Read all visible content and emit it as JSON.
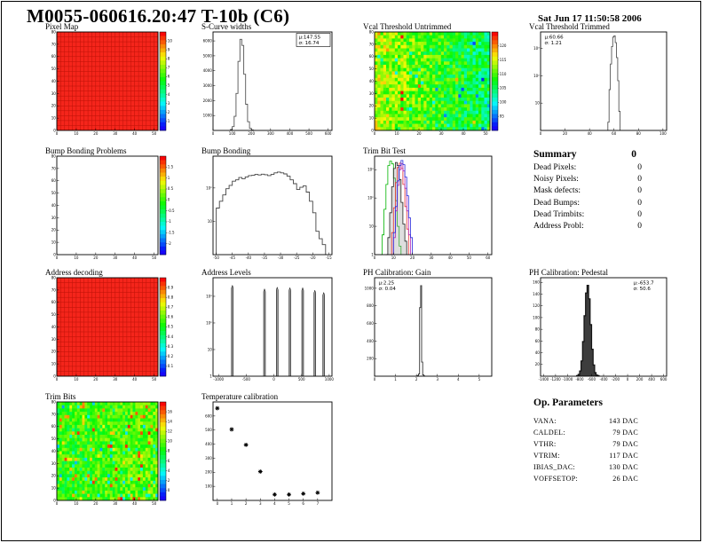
{
  "page": {
    "title": "M0055-060616.20:47 T-10b (C6)",
    "timestamp": "Sat Jun 17 11:50:58 2006"
  },
  "summary": {
    "title": "Summary",
    "total": "0",
    "rows": [
      {
        "label": "Dead Pixels:",
        "value": "0"
      },
      {
        "label": "Noisy Pixels:",
        "value": "0"
      },
      {
        "label": "Mask defects:",
        "value": "0"
      },
      {
        "label": "Dead Bumps:",
        "value": "0"
      },
      {
        "label": "Dead Trimbits:",
        "value": "0"
      },
      {
        "label": "Address Probl:",
        "value": "0"
      }
    ]
  },
  "op_parameters": {
    "title": "Op. Parameters",
    "rows": [
      {
        "label": "VANA:",
        "value": "143 DAC"
      },
      {
        "label": "CALDEL:",
        "value": "79 DAC"
      },
      {
        "label": "VTHR:",
        "value": "79 DAC"
      },
      {
        "label": "VTRIM:",
        "value": "117 DAC"
      },
      {
        "label": "IBIAS_DAC:",
        "value": "130 DAC"
      },
      {
        "label": "VOFFSETOP:",
        "value": "26 DAC"
      }
    ]
  },
  "chart_data": [
    {
      "id": "pixel_map",
      "type": "heatmap",
      "map": "solid",
      "title": "Pixel Map",
      "color": "#f5251b",
      "grid_color": "#bb1208",
      "nx": 26,
      "ny": 20,
      "xlim": [
        0,
        52
      ],
      "ylim": [
        0,
        80
      ],
      "x_ticks": [
        0,
        10,
        20,
        30,
        40,
        50
      ],
      "y_ticks": [
        0,
        10,
        20,
        30,
        40,
        50,
        60,
        70,
        80
      ],
      "tick_size": 3.6,
      "colorbar": {
        "labels": [
          "10",
          "9",
          "8",
          "7",
          "6",
          "5",
          "4",
          "3",
          "2",
          "1"
        ]
      },
      "margins": {
        "l": 16,
        "r": 22,
        "t": 11,
        "b": 10
      }
    },
    {
      "id": "s_curve_widths",
      "type": "histogram",
      "title": "S-Curve widths",
      "xlim": [
        0,
        620
      ],
      "ylim": [
        0,
        6600
      ],
      "x_ticks": [
        0,
        100,
        200,
        300,
        400,
        500,
        600
      ],
      "y_ticks": [
        1000,
        2000,
        3000,
        4000,
        5000,
        6000
      ],
      "tick_size": 3.6,
      "x_start": 90,
      "bin_width": 10,
      "values": [
        60,
        253,
        943,
        2482,
        4628,
        6104,
        5696,
        3761,
        1757,
        581,
        136,
        27,
        6
      ],
      "color": "#555",
      "lw": 0.9,
      "stats": {
        "mu": "147.55",
        "sigma": "16.74",
        "pos": "tr",
        "boxed": true
      },
      "margins": {
        "l": 17,
        "r": 3,
        "t": 11,
        "b": 10
      }
    },
    {
      "id": "vcal_untrimmed",
      "type": "heatmap",
      "map": "noise",
      "title": "Vcal Threshold Untrimmed",
      "nx": 40,
      "ny": 30,
      "base": 0.7,
      "grad": 0.26,
      "noise": 0.28,
      "hot": 0.02,
      "cold": 0.03,
      "seed": 42,
      "xlim": [
        0,
        52
      ],
      "ylim": [
        0,
        80
      ],
      "x_ticks": [
        0,
        10,
        20,
        30,
        40,
        50
      ],
      "y_ticks": [
        0,
        10,
        20,
        30,
        40,
        50,
        60,
        70,
        80
      ],
      "tick_size": 3.6,
      "colorbar": {
        "labels": [
          "120",
          "115",
          "110",
          "105",
          "100",
          "95"
        ]
      },
      "margins": {
        "l": 16,
        "r": 22,
        "t": 11,
        "b": 10
      }
    },
    {
      "id": "vcal_trimmed",
      "type": "histogram",
      "title": "Vcal Threshold Trimmed",
      "xlim": [
        0,
        103
      ],
      "ylim": [
        1,
        4000
      ],
      "log_y": true,
      "x_ticks": [
        0,
        20,
        40,
        60,
        80,
        100
      ],
      "y_ticks": [
        {
          "v": 10,
          "l": "10"
        },
        {
          "v": 100,
          "l": "10²"
        },
        {
          "v": 1000,
          "l": "10³"
        }
      ],
      "tick_size": 3.6,
      "x_start": 55,
      "bin_width": 1,
      "values": [
        2,
        31,
        268,
        1171,
        2585,
        2884,
        1624,
        463,
        66,
        5
      ],
      "color": "#555",
      "lw": 0.9,
      "stats": {
        "mu": "60.66",
        "sigma": "1.21",
        "pos": "tl",
        "boxed": false
      },
      "margins": {
        "l": 16,
        "r": 4,
        "t": 11,
        "b": 10
      }
    },
    {
      "id": "bump_problems",
      "type": "heatmap",
      "map": "empty",
      "title": "Bump Bonding Problems",
      "xlim": [
        0,
        52
      ],
      "ylim": [
        0,
        80
      ],
      "x_ticks": [
        0,
        10,
        20,
        30,
        40,
        50
      ],
      "y_ticks": [
        0,
        10,
        20,
        30,
        40,
        50,
        60,
        70,
        80
      ],
      "tick_size": 3.6,
      "colorbar": {
        "labels": [
          "1.5",
          "1",
          "0.5",
          "0",
          "-0.5",
          "-1",
          "-1.5",
          "-2"
        ]
      },
      "margins": {
        "l": 16,
        "r": 22,
        "t": 11,
        "b": 10
      }
    },
    {
      "id": "bump_bonding",
      "type": "histogram",
      "title": "Bump Bonding",
      "xlim": [
        -51,
        -14
      ],
      "ylim": [
        1,
        900
      ],
      "log_y": true,
      "x_ticks": [
        -50,
        -45,
        -40,
        -35,
        -30,
        -25,
        -20,
        -15
      ],
      "y_ticks": [
        {
          "v": 10,
          "l": "10"
        },
        {
          "v": 100,
          "l": "10²"
        }
      ],
      "tick_size": 3.4,
      "x_start": -50,
      "bin_width": 1,
      "values": [
        25,
        40,
        62,
        95,
        120,
        160,
        175,
        205,
        190,
        215,
        235,
        240,
        255,
        245,
        260,
        250,
        235,
        255,
        285,
        300,
        285,
        265,
        225,
        175,
        135,
        90,
        105,
        115,
        75,
        40,
        18,
        5,
        3,
        2
      ],
      "color": "#444",
      "lw": 0.9,
      "margins": {
        "l": 17,
        "r": 3,
        "t": 11,
        "b": 10
      }
    },
    {
      "id": "trim_bit_test",
      "type": "multi_histogram",
      "title": "Trim Bit Test",
      "xlim": [
        0,
        62
      ],
      "ylim": [
        1,
        3000
      ],
      "log_y": true,
      "x_ticks": [
        0,
        10,
        20,
        30,
        40,
        50,
        60
      ],
      "y_ticks": [
        {
          "v": 1,
          "l": "1"
        },
        {
          "v": 10,
          "l": "10"
        },
        {
          "v": 100,
          "l": "10²"
        },
        {
          "v": 1000,
          "l": "10³"
        }
      ],
      "tick_size": 3.6,
      "bin_width": 1,
      "series": [
        {
          "name": "trim-bit-green",
          "color": "#00b400",
          "x_start": 3,
          "values": [
            1,
            5,
            40,
            300,
            1400,
            2000,
            1600,
            500,
            80,
            10,
            2
          ]
        },
        {
          "name": "trim-bit-black",
          "color": "#222222",
          "fill": "rgba(160,160,160,0.35)",
          "x_start": 6,
          "values": [
            1,
            4,
            30,
            250,
            1100,
            1800,
            1400,
            450,
            70,
            12,
            3
          ]
        },
        {
          "name": "trim-bit-red",
          "color": "#e63232",
          "x_start": 8,
          "values": [
            1,
            6,
            45,
            350,
            1200,
            1700,
            1100,
            300,
            50,
            8
          ]
        },
        {
          "name": "trim-bit-magenta",
          "color": "#b428b4",
          "x_start": 9,
          "values": [
            1,
            4,
            35,
            280,
            1000,
            1600,
            900,
            220,
            35,
            5
          ]
        },
        {
          "name": "trim-bit-blue",
          "color": "#2828dc",
          "x_start": 9,
          "values": [
            1,
            6,
            50,
            400,
            1400,
            2100,
            1500,
            550,
            120,
            20,
            4
          ]
        }
      ],
      "margins": {
        "l": 16,
        "r": 20,
        "t": 11,
        "b": 10
      }
    },
    {
      "id": "address_decoding",
      "type": "heatmap",
      "map": "solid",
      "title": "Address decoding",
      "color": "#f5251b",
      "grid_color": "#bb1208",
      "nx": 26,
      "ny": 20,
      "xlim": [
        0,
        52
      ],
      "ylim": [
        0,
        80
      ],
      "x_ticks": [
        0,
        10,
        20,
        30,
        40,
        50
      ],
      "y_ticks": [
        0,
        10,
        20,
        30,
        40,
        50,
        60,
        70,
        80
      ],
      "tick_size": 3.6,
      "colorbar": {
        "labels": [
          "0.9",
          "0.8",
          "0.7",
          "0.6",
          "0.5",
          "0.4",
          "0.3",
          "0.2",
          "0.1"
        ]
      },
      "margins": {
        "l": 16,
        "r": 22,
        "t": 11,
        "b": 10
      }
    },
    {
      "id": "address_levels",
      "type": "spikes",
      "title": "Address Levels",
      "xlim": [
        -1100,
        1050
      ],
      "ylim": [
        1,
        5000
      ],
      "log_y": true,
      "x_ticks": [
        -1000,
        -500,
        0,
        500,
        1000
      ],
      "y_ticks": [
        {
          "v": 1,
          "l": "1"
        },
        {
          "v": 10,
          "l": "10"
        },
        {
          "v": 100,
          "l": "10²"
        },
        {
          "v": 1000,
          "l": "10³"
        }
      ],
      "tick_size": 3.6,
      "points": [
        [
          -750,
          2600
        ],
        [
          -170,
          1900
        ],
        [
          60,
          2200
        ],
        [
          290,
          2100
        ],
        [
          520,
          2100
        ],
        [
          740,
          1700
        ],
        [
          900,
          1400
        ]
      ],
      "margins": {
        "l": 17,
        "r": 3,
        "t": 11,
        "b": 10
      }
    },
    {
      "id": "ph_gain",
      "type": "histogram",
      "title": "PH Calibration: Gain",
      "xlim": [
        0,
        5.6
      ],
      "ylim": [
        0,
        1120
      ],
      "x_ticks": [
        0,
        1,
        2,
        3,
        4,
        5
      ],
      "y_ticks": [
        200,
        400,
        600,
        800,
        1000
      ],
      "tick_size": 3.4,
      "x_start": 2.0,
      "bin_width": 0.05,
      "values": [
        2,
        8,
        25,
        780,
        1030,
        160,
        15,
        3
      ],
      "color": "#333",
      "lw": 0.9,
      "stats": {
        "mu": "2.25",
        "sigma": "0.04",
        "pos": "tl",
        "boxed": false
      },
      "margins": {
        "l": 16,
        "r": 20,
        "t": 11,
        "b": 10
      }
    },
    {
      "id": "ph_pedestal",
      "type": "histogram",
      "title": "PH Calibration: Pedestal",
      "xlim": [
        -1450,
        650
      ],
      "ylim": [
        0,
        168
      ],
      "x_ticks": [
        -1400,
        -1200,
        -1000,
        -800,
        -600,
        -400,
        -200,
        0,
        200,
        400,
        600
      ],
      "y_ticks": [
        20,
        40,
        60,
        80,
        100,
        120,
        140,
        160
      ],
      "tick_size": 3,
      "x_start": -850,
      "bin_width": 25,
      "values": [
        1,
        3,
        9,
        26,
        59,
        103,
        142,
        155,
        132,
        88,
        46,
        19,
        6,
        2,
        1
      ],
      "color": "#111",
      "fill": "#3d3d3d",
      "lw": 1.2,
      "stats": {
        "mu": "-653.7",
        "sigma": "50.6",
        "pos": "tr",
        "boxed": false
      },
      "margins": {
        "l": 16,
        "r": 4,
        "t": 11,
        "b": 10
      }
    },
    {
      "id": "trim_bits",
      "type": "heatmap",
      "map": "noise",
      "title": "Trim Bits",
      "nx": 40,
      "ny": 30,
      "base": 0.55,
      "grad": -0.07,
      "noise": 0.22,
      "hot": 0.06,
      "cold": 0.05,
      "seed": 99,
      "xlim": [
        0,
        52
      ],
      "ylim": [
        0,
        80
      ],
      "x_ticks": [
        0,
        10,
        20,
        30,
        40,
        50
      ],
      "y_ticks": [
        0,
        10,
        20,
        30,
        40,
        50,
        60,
        70,
        80
      ],
      "tick_size": 3.6,
      "colorbar": {
        "labels": [
          "16",
          "14",
          "12",
          "10",
          "8",
          "6",
          "4",
          "2",
          "0"
        ]
      },
      "margins": {
        "l": 16,
        "r": 22,
        "t": 11,
        "b": 10
      }
    },
    {
      "id": "temp_cal",
      "type": "scatter",
      "title": "Temperature calibration",
      "xlim": [
        -0.3,
        8
      ],
      "ylim": [
        0,
        700
      ],
      "x_ticks": [
        0,
        1,
        2,
        3,
        4,
        5,
        6,
        7
      ],
      "y_ticks": [
        100,
        200,
        300,
        400,
        500,
        600
      ],
      "tick_size": 3.4,
      "points": [
        [
          0,
          655
        ],
        [
          1,
          505
        ],
        [
          2,
          395
        ],
        [
          3,
          205
        ],
        [
          4,
          42
        ],
        [
          5,
          42
        ],
        [
          6,
          48
        ],
        [
          7,
          55
        ]
      ],
      "margins": {
        "l": 17,
        "r": 3,
        "t": 11,
        "b": 10
      }
    }
  ]
}
